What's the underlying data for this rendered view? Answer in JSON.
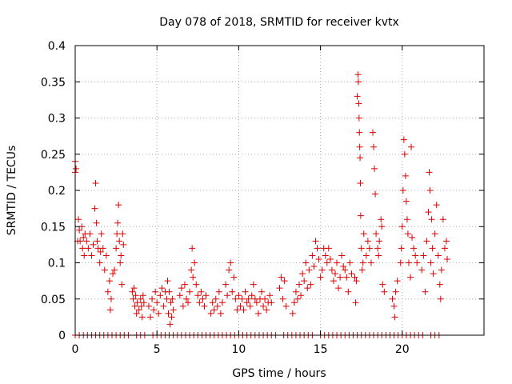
{
  "chart_data": {
    "type": "scatter",
    "title": "Day 078 of 2018, SRMTID for receiver kvtx",
    "xlabel": "GPS time / hours",
    "ylabel": "SRMTID / TECUs",
    "xlim": [
      0,
      25
    ],
    "ylim": [
      0,
      0.4
    ],
    "grid": true,
    "x_ticks": [
      "0",
      "5",
      "10",
      "15",
      "20"
    ],
    "y_ticks": [
      "0",
      "0.05",
      "0.1",
      "0.15",
      "0.2",
      "0.25",
      "0.3",
      "0.35",
      "0.4"
    ],
    "marker": "+",
    "series_color": "#dd0000",
    "series": [
      {
        "name": "SRMTID",
        "points": [
          [
            0.0,
            0.24
          ],
          [
            0.0,
            0.225
          ],
          [
            0.05,
            0.23
          ],
          [
            0.15,
            0.13
          ],
          [
            0.2,
            0.16
          ],
          [
            0.25,
            0.145
          ],
          [
            0.3,
            0.13
          ],
          [
            0.4,
            0.15
          ],
          [
            0.45,
            0.12
          ],
          [
            0.5,
            0.135
          ],
          [
            0.55,
            0.11
          ],
          [
            0.6,
            0.14
          ],
          [
            0.7,
            0.13
          ],
          [
            0.8,
            0.12
          ],
          [
            0.9,
            0.14
          ],
          [
            1.0,
            0.11
          ],
          [
            1.1,
            0.125
          ],
          [
            1.2,
            0.175
          ],
          [
            1.25,
            0.21
          ],
          [
            1.3,
            0.155
          ],
          [
            1.35,
            0.13
          ],
          [
            1.4,
            0.12
          ],
          [
            1.5,
            0.1
          ],
          [
            1.55,
            0.115
          ],
          [
            1.6,
            0.14
          ],
          [
            1.7,
            0.12
          ],
          [
            1.8,
            0.09
          ],
          [
            1.9,
            0.11
          ],
          [
            2.0,
            0.06
          ],
          [
            2.1,
            0.075
          ],
          [
            2.15,
            0.035
          ],
          [
            2.2,
            0.05
          ],
          [
            2.3,
            0.085
          ],
          [
            2.4,
            0.09
          ],
          [
            2.5,
            0.12
          ],
          [
            2.55,
            0.14
          ],
          [
            2.6,
            0.155
          ],
          [
            2.65,
            0.18
          ],
          [
            2.7,
            0.13
          ],
          [
            2.75,
            0.1
          ],
          [
            2.8,
            0.11
          ],
          [
            2.85,
            0.07
          ],
          [
            2.9,
            0.14
          ],
          [
            2.95,
            0.125
          ],
          [
            3.5,
            0.06
          ],
          [
            3.55,
            0.05
          ],
          [
            3.6,
            0.065
          ],
          [
            3.65,
            0.04
          ],
          [
            3.7,
            0.055
          ],
          [
            3.75,
            0.03
          ],
          [
            3.8,
            0.045
          ],
          [
            3.9,
            0.035
          ],
          [
            4.0,
            0.05
          ],
          [
            4.05,
            0.04
          ],
          [
            4.1,
            0.025
          ],
          [
            4.15,
            0.055
          ],
          [
            4.2,
            0.045
          ],
          [
            4.5,
            0.04
          ],
          [
            4.6,
            0.025
          ],
          [
            4.7,
            0.05
          ],
          [
            4.8,
            0.035
          ],
          [
            4.9,
            0.06
          ],
          [
            5.0,
            0.045
          ],
          [
            5.1,
            0.03
          ],
          [
            5.2,
            0.055
          ],
          [
            5.3,
            0.065
          ],
          [
            5.4,
            0.04
          ],
          [
            5.5,
            0.06
          ],
          [
            5.6,
            0.05
          ],
          [
            5.65,
            0.075
          ],
          [
            5.7,
            0.03
          ],
          [
            5.75,
            0.06
          ],
          [
            5.8,
            0.015
          ],
          [
            5.85,
            0.045
          ],
          [
            5.9,
            0.025
          ],
          [
            5.95,
            0.05
          ],
          [
            6.0,
            0.035
          ],
          [
            6.4,
            0.055
          ],
          [
            6.5,
            0.065
          ],
          [
            6.6,
            0.04
          ],
          [
            6.7,
            0.07
          ],
          [
            6.8,
            0.05
          ],
          [
            6.9,
            0.045
          ],
          [
            7.0,
            0.06
          ],
          [
            7.1,
            0.09
          ],
          [
            7.15,
            0.12
          ],
          [
            7.2,
            0.08
          ],
          [
            7.3,
            0.1
          ],
          [
            7.4,
            0.07
          ],
          [
            7.5,
            0.055
          ],
          [
            7.6,
            0.045
          ],
          [
            7.7,
            0.06
          ],
          [
            7.8,
            0.05
          ],
          [
            7.9,
            0.04
          ],
          [
            8.0,
            0.055
          ],
          [
            8.3,
            0.03
          ],
          [
            8.4,
            0.045
          ],
          [
            8.5,
            0.035
          ],
          [
            8.6,
            0.05
          ],
          [
            8.7,
            0.04
          ],
          [
            8.8,
            0.06
          ],
          [
            8.9,
            0.03
          ],
          [
            9.0,
            0.045
          ],
          [
            9.2,
            0.07
          ],
          [
            9.3,
            0.055
          ],
          [
            9.4,
            0.09
          ],
          [
            9.5,
            0.1
          ],
          [
            9.6,
            0.06
          ],
          [
            9.7,
            0.08
          ],
          [
            9.8,
            0.05
          ],
          [
            9.9,
            0.035
          ],
          [
            10.0,
            0.055
          ],
          [
            10.1,
            0.04
          ],
          [
            10.2,
            0.05
          ],
          [
            10.3,
            0.035
          ],
          [
            10.4,
            0.06
          ],
          [
            10.5,
            0.045
          ],
          [
            10.6,
            0.05
          ],
          [
            10.7,
            0.04
          ],
          [
            10.8,
            0.055
          ],
          [
            10.9,
            0.07
          ],
          [
            11.0,
            0.05
          ],
          [
            11.1,
            0.045
          ],
          [
            11.2,
            0.03
          ],
          [
            11.3,
            0.05
          ],
          [
            11.4,
            0.06
          ],
          [
            11.5,
            0.04
          ],
          [
            11.6,
            0.05
          ],
          [
            11.7,
            0.035
          ],
          [
            11.8,
            0.045
          ],
          [
            11.9,
            0.055
          ],
          [
            12.0,
            0.045
          ],
          [
            12.5,
            0.065
          ],
          [
            12.6,
            0.08
          ],
          [
            12.7,
            0.05
          ],
          [
            12.8,
            0.075
          ],
          [
            12.9,
            0.04
          ],
          [
            13.3,
            0.03
          ],
          [
            13.4,
            0.045
          ],
          [
            13.5,
            0.06
          ],
          [
            13.6,
            0.05
          ],
          [
            13.7,
            0.07
          ],
          [
            13.8,
            0.055
          ],
          [
            13.9,
            0.085
          ],
          [
            14.0,
            0.075
          ],
          [
            14.1,
            0.1
          ],
          [
            14.2,
            0.065
          ],
          [
            14.3,
            0.09
          ],
          [
            14.4,
            0.07
          ],
          [
            14.5,
            0.11
          ],
          [
            14.6,
            0.095
          ],
          [
            14.7,
            0.13
          ],
          [
            14.8,
            0.12
          ],
          [
            14.9,
            0.105
          ],
          [
            15.0,
            0.08
          ],
          [
            15.1,
            0.09
          ],
          [
            15.2,
            0.12
          ],
          [
            15.3,
            0.11
          ],
          [
            15.4,
            0.1
          ],
          [
            15.5,
            0.12
          ],
          [
            15.6,
            0.105
          ],
          [
            15.7,
            0.09
          ],
          [
            15.8,
            0.075
          ],
          [
            15.9,
            0.085
          ],
          [
            16.0,
            0.1
          ],
          [
            16.1,
            0.065
          ],
          [
            16.2,
            0.08
          ],
          [
            16.3,
            0.11
          ],
          [
            16.4,
            0.095
          ],
          [
            16.5,
            0.09
          ],
          [
            16.6,
            0.08
          ],
          [
            16.7,
            0.06
          ],
          [
            16.8,
            0.1
          ],
          [
            16.9,
            0.085
          ],
          [
            17.1,
            0.08
          ],
          [
            17.15,
            0.045
          ],
          [
            17.2,
            0.075
          ],
          [
            17.25,
            0.33
          ],
          [
            17.3,
            0.36
          ],
          [
            17.32,
            0.35
          ],
          [
            17.34,
            0.32
          ],
          [
            17.36,
            0.3
          ],
          [
            17.38,
            0.28
          ],
          [
            17.4,
            0.26
          ],
          [
            17.42,
            0.245
          ],
          [
            17.44,
            0.21
          ],
          [
            17.46,
            0.165
          ],
          [
            17.5,
            0.12
          ],
          [
            17.55,
            0.09
          ],
          [
            17.6,
            0.1
          ],
          [
            17.65,
            0.14
          ],
          [
            17.8,
            0.11
          ],
          [
            17.9,
            0.13
          ],
          [
            18.0,
            0.12
          ],
          [
            18.1,
            0.1
          ],
          [
            18.2,
            0.28
          ],
          [
            18.25,
            0.26
          ],
          [
            18.3,
            0.23
          ],
          [
            18.35,
            0.195
          ],
          [
            18.4,
            0.14
          ],
          [
            18.5,
            0.12
          ],
          [
            18.55,
            0.11
          ],
          [
            18.6,
            0.13
          ],
          [
            18.7,
            0.16
          ],
          [
            18.75,
            0.15
          ],
          [
            18.8,
            0.07
          ],
          [
            18.9,
            0.06
          ],
          [
            19.4,
            0.05
          ],
          [
            19.5,
            0.04
          ],
          [
            19.55,
            0.025
          ],
          [
            19.6,
            0.06
          ],
          [
            19.7,
            0.075
          ],
          [
            19.9,
            0.1
          ],
          [
            19.95,
            0.12
          ],
          [
            20.0,
            0.15
          ],
          [
            20.05,
            0.2
          ],
          [
            20.1,
            0.27
          ],
          [
            20.15,
            0.25
          ],
          [
            20.2,
            0.22
          ],
          [
            20.25,
            0.185
          ],
          [
            20.3,
            0.16
          ],
          [
            20.35,
            0.14
          ],
          [
            20.4,
            0.1
          ],
          [
            20.5,
            0.08
          ],
          [
            20.55,
            0.26
          ],
          [
            20.6,
            0.135
          ],
          [
            20.7,
            0.12
          ],
          [
            20.8,
            0.11
          ],
          [
            20.9,
            0.1
          ],
          [
            21.2,
            0.09
          ],
          [
            21.3,
            0.11
          ],
          [
            21.4,
            0.06
          ],
          [
            21.5,
            0.13
          ],
          [
            21.6,
            0.17
          ],
          [
            21.65,
            0.225
          ],
          [
            21.7,
            0.2
          ],
          [
            21.75,
            0.1
          ],
          [
            21.8,
            0.16
          ],
          [
            21.85,
            0.12
          ],
          [
            21.9,
            0.085
          ],
          [
            22.0,
            0.14
          ],
          [
            22.1,
            0.18
          ],
          [
            22.2,
            0.11
          ],
          [
            22.3,
            0.07
          ],
          [
            22.35,
            0.05
          ],
          [
            22.4,
            0.09
          ],
          [
            22.5,
            0.16
          ],
          [
            22.6,
            0.12
          ],
          [
            22.7,
            0.13
          ],
          [
            22.75,
            0.105
          ]
        ],
        "zero_points_x": [
          0.0,
          0.25,
          0.5,
          0.75,
          1.0,
          1.25,
          1.5,
          1.75,
          2.0,
          2.25,
          2.5,
          2.75,
          3.0,
          3.25,
          3.75,
          4.0,
          4.25,
          4.75,
          5.0,
          5.25,
          5.5,
          5.75,
          6.0,
          6.25,
          6.5,
          6.75,
          7.0,
          7.25,
          7.5,
          7.75,
          8.0,
          8.25,
          8.5,
          8.75,
          9.0,
          9.25,
          9.5,
          9.75,
          10.0,
          10.25,
          10.5,
          10.75,
          11.0,
          11.25,
          11.5,
          11.75,
          12.0,
          12.25,
          12.75,
          13.0,
          13.25,
          13.5,
          13.75,
          14.0,
          14.25,
          14.5,
          15.0,
          15.25,
          15.5,
          15.75,
          16.0,
          16.25,
          16.5,
          16.75,
          17.0,
          17.25,
          17.5,
          17.75,
          18.0,
          18.25,
          18.5,
          18.75,
          19.0,
          19.25,
          19.5,
          19.75,
          20.0,
          20.25,
          20.5,
          20.75,
          21.0,
          21.25,
          21.75,
          22.0,
          22.25
        ]
      }
    ]
  }
}
